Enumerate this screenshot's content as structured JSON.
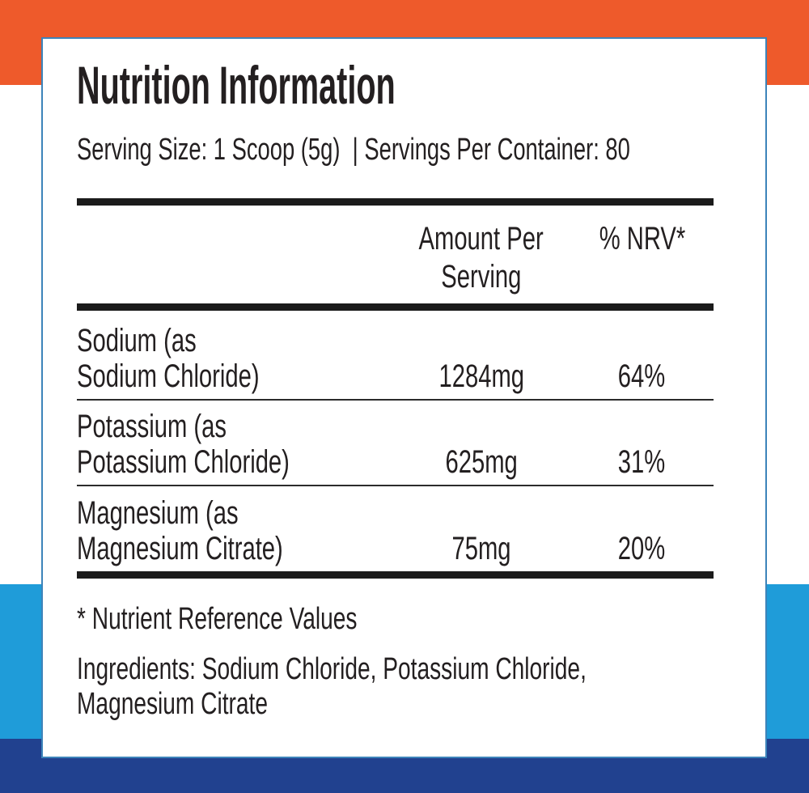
{
  "label": {
    "title": "Nutrition Information",
    "serving_line": "Serving Size: 1 Scoop (5g)  | Servings Per Container: 80"
  },
  "table": {
    "header": {
      "amount_lines": [
        "Amount Per",
        "Serving"
      ],
      "nrv": "% NRV*"
    },
    "rows": [
      {
        "name_lines": [
          "Sodium (as",
          "Sodium Chloride)"
        ],
        "amount": "1284mg",
        "nrv": "64%"
      },
      {
        "name_lines": [
          "Potassium (as",
          "Potassium Chloride)"
        ],
        "amount": "625mg",
        "nrv": "31%"
      },
      {
        "name_lines": [
          "Magnesium (as",
          "Magnesium Citrate)"
        ],
        "amount": "75mg",
        "nrv": "20%"
      }
    ]
  },
  "footer": {
    "footnote": "* Nutrient Reference Values",
    "ingredients_lines": [
      "Ingredients: Sodium Chloride, Potassium Chloride,",
      "Magnesium Citrate"
    ]
  },
  "colors": {
    "orange_band": "#EE5A2B",
    "light_blue_band": "#1F9CD9",
    "navy_band": "#21418F",
    "card_border": "#3D84BA",
    "text": "#231F20",
    "rule": "#1B1B1B"
  }
}
